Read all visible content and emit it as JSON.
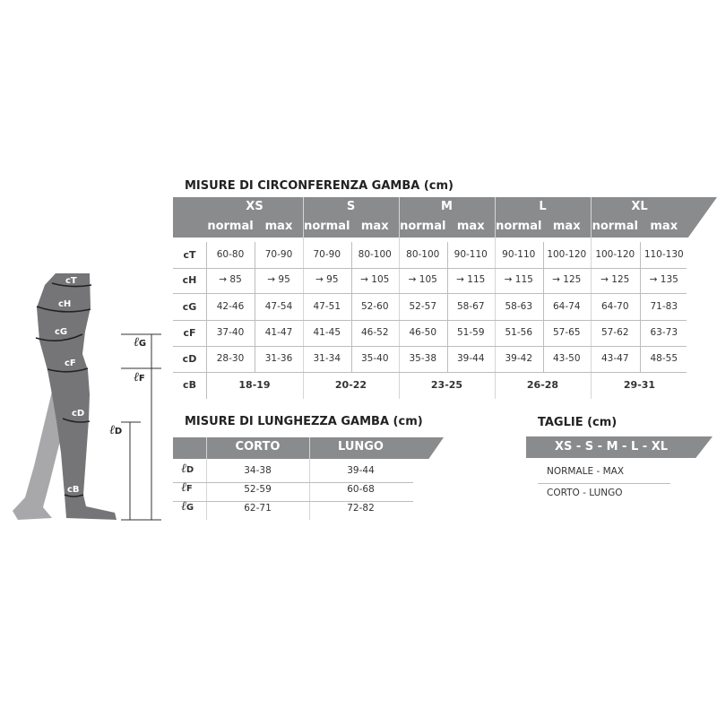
{
  "circumference": {
    "title": "MISURE DI CIRCONFERENZA GAMBA (cm)",
    "sizes": [
      "XS",
      "S",
      "M",
      "L",
      "XL"
    ],
    "sub_headers": [
      "normal",
      "max"
    ],
    "rows": [
      {
        "label": "cT",
        "values": [
          "60-80",
          "70-90",
          "70-90",
          "80-100",
          "80-100",
          "90-110",
          "90-110",
          "100-120",
          "100-120",
          "110-130"
        ]
      },
      {
        "label": "cH",
        "values": [
          "→ 85",
          "→ 95",
          "→ 95",
          "→ 105",
          "→ 105",
          "→ 115",
          "→ 115",
          "→ 125",
          "→ 125",
          "→ 135"
        ]
      },
      {
        "label": "cG",
        "values": [
          "42-46",
          "47-54",
          "47-51",
          "52-60",
          "52-57",
          "58-67",
          "58-63",
          "64-74",
          "64-70",
          "71-83"
        ]
      },
      {
        "label": "cF",
        "values": [
          "37-40",
          "41-47",
          "41-45",
          "46-52",
          "46-50",
          "51-59",
          "51-56",
          "57-65",
          "57-62",
          "63-73"
        ]
      },
      {
        "label": "cD",
        "values": [
          "28-30",
          "31-36",
          "31-34",
          "35-40",
          "35-38",
          "39-44",
          "39-42",
          "43-50",
          "43-47",
          "48-55"
        ]
      }
    ],
    "cB": {
      "label": "cB",
      "values": [
        "18-19",
        "20-22",
        "23-25",
        "26-28",
        "29-31"
      ]
    }
  },
  "length": {
    "title": "MISURE DI LUNGHEZZA GAMBA (cm)",
    "columns": [
      "CORTO",
      "LUNGO"
    ],
    "rows": [
      {
        "label": "ℓ",
        "sub": "D",
        "values": [
          "34-38",
          "39-44"
        ]
      },
      {
        "label": "ℓ",
        "sub": "F",
        "values": [
          "52-59",
          "60-68"
        ]
      },
      {
        "label": "ℓ",
        "sub": "G",
        "values": [
          "62-71",
          "72-82"
        ]
      }
    ]
  },
  "sizes_legend": {
    "title": "TAGLIE (cm)",
    "header": "XS - S - M - L - XL",
    "rows": [
      "NORMALE - MAX",
      "CORTO - LUNGO"
    ]
  },
  "figure": {
    "circ_labels": [
      "cT",
      "cH",
      "cG",
      "cF",
      "cD",
      "cB"
    ],
    "length_labels": [
      {
        "l": "ℓ",
        "s": "G"
      },
      {
        "l": "ℓ",
        "s": "F"
      },
      {
        "l": "ℓ",
        "s": "D"
      }
    ]
  },
  "colors": {
    "header": "#8a8b8d",
    "leg": "#757577",
    "leg_back": "#a8a8aa"
  }
}
